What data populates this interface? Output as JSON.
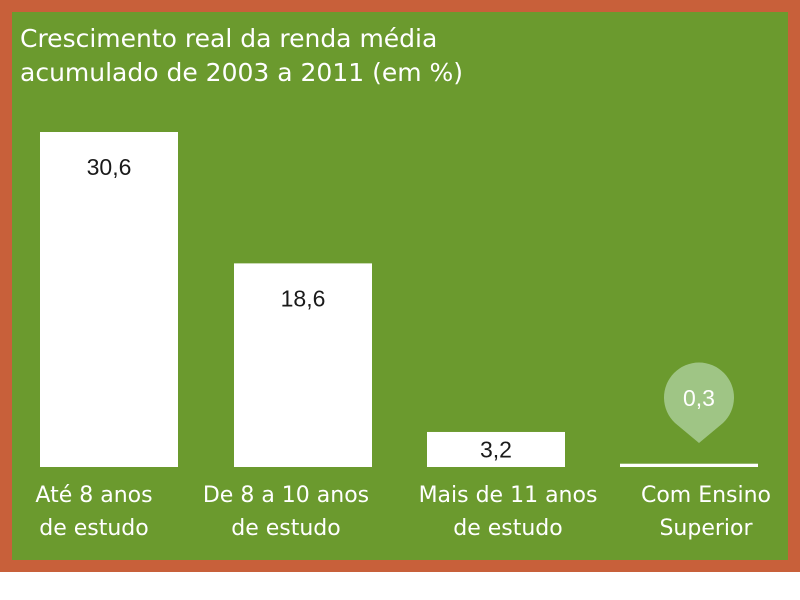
{
  "chart_data": {
    "type": "bar",
    "title_lines": [
      "Crescimento real da renda média",
      "acumulado de 2003 a 2011 (em %)"
    ],
    "categories": [
      [
        "Até 8 anos",
        "de estudo"
      ],
      [
        "De 8 a 10 anos",
        "de estudo"
      ],
      [
        "Mais de 11 anos",
        "de estudo"
      ],
      [
        "Com Ensino",
        "Superior"
      ]
    ],
    "values": [
      30.6,
      18.6,
      3.2,
      0.3
    ],
    "value_labels": [
      "30,6",
      "18,6",
      "3,2",
      "0,3"
    ],
    "ylim": [
      0,
      30.6
    ],
    "grid": false,
    "legend": "none",
    "colors": {
      "frame": "#c8603a",
      "background": "#6b9a2e",
      "bar": "#ffffff",
      "pin": "#9fc585",
      "text": "#ffffff",
      "value_text": "#1a1a1a"
    }
  }
}
